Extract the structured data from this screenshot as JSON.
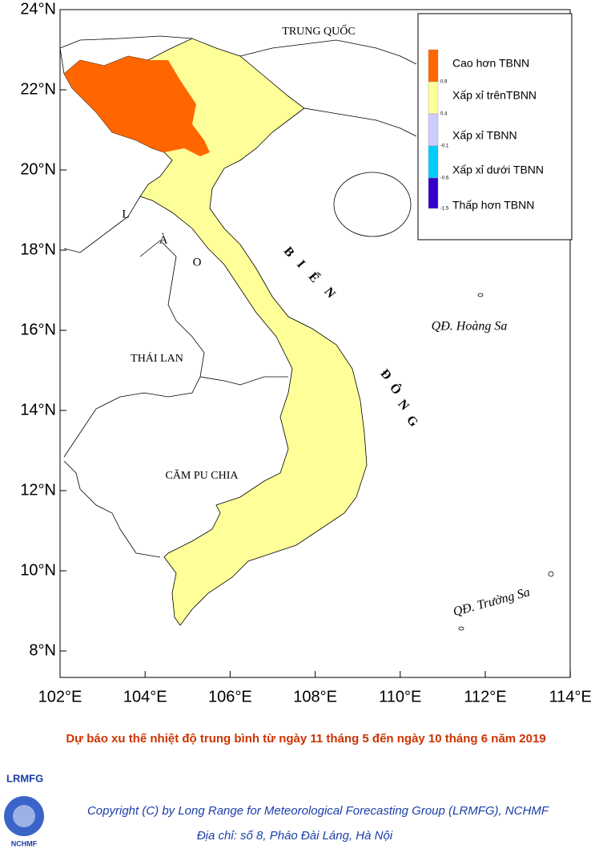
{
  "map": {
    "lat_ticks": [
      "24°N",
      "22°N",
      "20°N",
      "18°N",
      "16°N",
      "14°N",
      "12°N",
      "10°N",
      "8°N"
    ],
    "lon_ticks": [
      "102°E",
      "104°E",
      "106°E",
      "108°E",
      "110°E",
      "112°E",
      "114°E"
    ],
    "labels": {
      "china": "TRUNG   QUỐC",
      "thailand": "THÁI   LAN",
      "cambodia": "CĂM PU CHIA",
      "hoang_sa": "QĐ. Hoàng Sa",
      "truong_sa": "QĐ. Trường Sa",
      "laos_letters": [
        "L",
        "À",
        "O"
      ],
      "sea_letters": [
        "B",
        "I",
        "Ể",
        "N",
        "Đ",
        "Ô",
        "N",
        "G"
      ]
    },
    "legend": [
      {
        "label": "Cao hơn TBNN",
        "color": "#ff6600",
        "bound": "0.9"
      },
      {
        "label": "Xấp xỉ trênTBNN",
        "color": "#ffff99",
        "bound": "0.4"
      },
      {
        "label": "Xấp xỉ TBNN",
        "color": "#ccccff",
        "bound": "-0.1"
      },
      {
        "label": "Xấp xỉ dưới TBNN",
        "color": "#00ccff",
        "bound": "-0.6"
      },
      {
        "label": "Thấp hơn TBNN",
        "color": "#3300cc",
        "bound": "-1.5"
      }
    ]
  },
  "caption": "Dự báo xu thế nhiệt độ trung bình từ ngày 11 tháng 5 đến ngày 10 tháng 6 năm 2019",
  "footer": {
    "group": "LRMFG",
    "logo": "NCHMF",
    "copyright": "Copyright (C) by Long Range for Meteorological Forecasting Group (LRMFG), NCHMF",
    "address": "Địa chỉ: số 8, Pháo Đài Láng, Hà Nội"
  }
}
